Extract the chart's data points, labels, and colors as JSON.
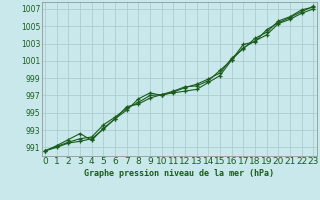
{
  "title": "Graphe pression niveau de la mer (hPa)",
  "bg_color": "#c8e8ec",
  "grid_color": "#a8c8cc",
  "line_color": "#1a5c1a",
  "x_ticks": [
    0,
    1,
    2,
    3,
    4,
    5,
    6,
    7,
    8,
    9,
    10,
    11,
    12,
    13,
    14,
    15,
    16,
    17,
    18,
    19,
    20,
    21,
    22,
    23
  ],
  "y_ticks": [
    991,
    993,
    995,
    997,
    999,
    1001,
    1003,
    1005,
    1007
  ],
  "ylim": [
    990.0,
    1007.8
  ],
  "xlim": [
    -0.3,
    23.3
  ],
  "series1": [
    990.6,
    991.1,
    991.6,
    992.0,
    992.2,
    993.6,
    994.5,
    995.5,
    996.2,
    997.0,
    997.1,
    997.3,
    997.5,
    997.7,
    998.5,
    999.3,
    1001.1,
    1002.5,
    1003.3,
    1004.0,
    1005.3,
    1005.8,
    1006.5,
    1007.0
  ],
  "series2": [
    990.6,
    991.2,
    991.9,
    992.6,
    991.8,
    993.2,
    994.3,
    995.3,
    996.6,
    997.3,
    997.0,
    997.4,
    997.9,
    998.3,
    998.9,
    999.6,
    1001.3,
    1002.4,
    1003.6,
    1004.3,
    1005.6,
    1006.1,
    1006.9,
    1007.2
  ],
  "series3": [
    990.6,
    991.0,
    991.5,
    991.7,
    992.0,
    993.1,
    994.3,
    995.7,
    996.0,
    996.7,
    997.1,
    997.5,
    998.0,
    998.1,
    998.7,
    999.9,
    1001.1,
    1002.9,
    1003.2,
    1004.6,
    1005.4,
    1006.0,
    1006.7,
    1007.3
  ],
  "tick_color": "#1a5c1a",
  "xlabel_fontsize": 6.5,
  "ylabel_fontsize": 5.5,
  "title_fontsize": 6.0
}
